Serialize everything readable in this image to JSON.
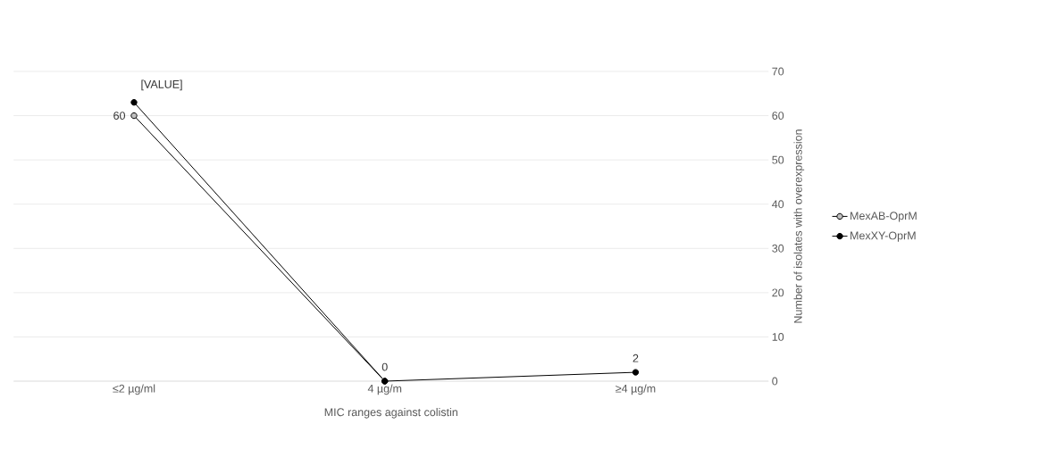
{
  "chart_data": {
    "type": "line",
    "categories": [
      "≤2 µg/ml",
      "4 µg/m",
      "≥4 µg/m"
    ],
    "series": [
      {
        "name": "MexAB-OprM",
        "color": "#c0c0c0",
        "values": [
          60,
          0,
          null
        ],
        "value_labels": [
          "60",
          null,
          null
        ]
      },
      {
        "name": "MexXY-OprM",
        "color": "#000000",
        "values": [
          63,
          0,
          2
        ],
        "value_labels": [
          "[VALUE]",
          "0",
          "2"
        ]
      }
    ],
    "xlabel": "MIC ranges against  colistin",
    "ylabel": "Number of isolates with overexpression",
    "ylim": [
      0,
      70
    ],
    "yticks": [
      0,
      10,
      20,
      30,
      40,
      50,
      60,
      70
    ],
    "grid": "y",
    "legend": "right",
    "marker": "circle",
    "line_style": "solid"
  }
}
